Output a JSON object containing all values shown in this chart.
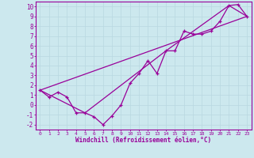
{
  "xlabel": "Windchill (Refroidissement éolien,°C)",
  "bg_color": "#cce8ee",
  "grid_color": "#aaccdd",
  "line_color": "#990099",
  "xlim": [
    -0.5,
    23.5
  ],
  "ylim": [
    -2.5,
    10.5
  ],
  "xticks": [
    0,
    1,
    2,
    3,
    4,
    5,
    6,
    7,
    8,
    9,
    10,
    11,
    12,
    13,
    14,
    15,
    16,
    17,
    18,
    19,
    20,
    21,
    22,
    23
  ],
  "yticks": [
    -2,
    -1,
    0,
    1,
    2,
    3,
    4,
    5,
    6,
    7,
    8,
    9,
    10
  ],
  "line1_x": [
    0,
    1,
    2,
    3,
    4,
    5,
    6,
    7,
    8,
    9,
    10,
    11,
    12,
    13,
    14,
    15,
    16,
    17,
    18,
    19,
    20,
    21,
    22,
    23
  ],
  "line1_y": [
    1.5,
    0.8,
    1.3,
    0.8,
    -0.8,
    -0.8,
    -1.2,
    -2.0,
    -1.1,
    0.0,
    2.2,
    3.2,
    4.5,
    3.2,
    5.5,
    5.5,
    7.5,
    7.2,
    7.2,
    7.5,
    8.5,
    10.1,
    10.2,
    9.0
  ],
  "line2_x": [
    0,
    23
  ],
  "line2_y": [
    1.5,
    9.0
  ],
  "line3_x": [
    0,
    5,
    14,
    21,
    23
  ],
  "line3_y": [
    1.5,
    -0.8,
    5.5,
    10.1,
    9.0
  ]
}
